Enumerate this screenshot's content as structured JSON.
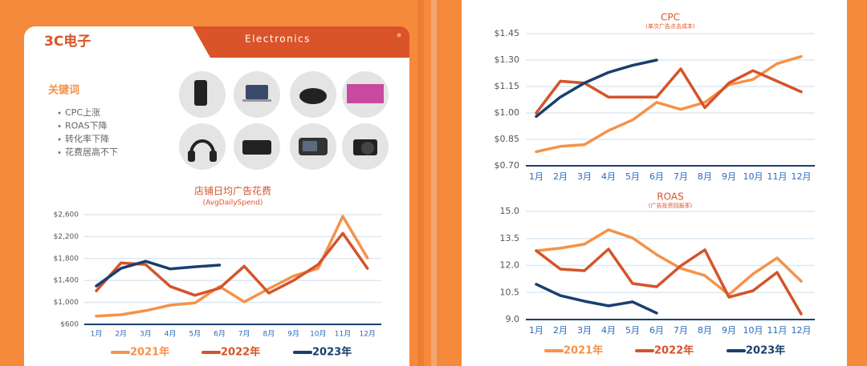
{
  "header": {
    "title": "3C电子",
    "tab": "Electronics"
  },
  "keywords": {
    "title": "关键词",
    "items": [
      "CPC上涨",
      "ROAS下降",
      "转化率下降",
      "花费居高不下"
    ]
  },
  "chart_data": [
    {
      "type": "line",
      "title": "店铺日均广告花费",
      "subtitle": "(AvgDailySpend)",
      "categories": [
        "1月",
        "2月",
        "3月",
        "4月",
        "5月",
        "6月",
        "7月",
        "8月",
        "9月",
        "10月",
        "11月",
        "12月"
      ],
      "ylim": [
        600,
        2600
      ],
      "yticks": [
        {
          "value": 600,
          "label": "$600"
        },
        {
          "value": 1000,
          "label": "$1,000"
        },
        {
          "value": 1400,
          "label": "$1,400"
        },
        {
          "value": 1800,
          "label": "$1,800"
        },
        {
          "value": 2200,
          "label": "$2,200"
        },
        {
          "value": 2600,
          "label": "$2,600"
        }
      ],
      "grid": true,
      "series": [
        {
          "name": "2021年",
          "color": "#f5924a",
          "values": [
            750,
            775,
            850,
            950,
            990,
            1290,
            1010,
            1250,
            1480,
            1620,
            2570,
            1810
          ]
        },
        {
          "name": "2022年",
          "color": "#d4542a",
          "values": [
            1210,
            1720,
            1690,
            1290,
            1130,
            1260,
            1660,
            1170,
            1400,
            1690,
            2260,
            1620
          ]
        },
        {
          "name": "2023年",
          "color": "#1a3f6e",
          "values": [
            1300,
            1620,
            1750,
            1610,
            1650,
            1680,
            null,
            null,
            null,
            null,
            null,
            null
          ]
        }
      ]
    },
    {
      "type": "line",
      "title": "CPC",
      "subtitle": "(单次广告点击成本)",
      "categories": [
        "1月",
        "2月",
        "3月",
        "4月",
        "5月",
        "6月",
        "7月",
        "8月",
        "9月",
        "10月",
        "11月",
        "12月"
      ],
      "ylim": [
        0.7,
        1.45
      ],
      "yticks": [
        {
          "value": 0.7,
          "label": "$0.70"
        },
        {
          "value": 0.85,
          "label": "$0.85"
        },
        {
          "value": 1.0,
          "label": "$1.00"
        },
        {
          "value": 1.15,
          "label": "$1.15"
        },
        {
          "value": 1.3,
          "label": "$1.30"
        },
        {
          "value": 1.45,
          "label": "$1.45"
        }
      ],
      "grid": true,
      "series": [
        {
          "color": "#f5924a",
          "values": [
            0.78,
            0.81,
            0.82,
            0.9,
            0.96,
            1.06,
            1.02,
            1.06,
            1.16,
            1.19,
            1.28,
            1.32
          ]
        },
        {
          "color": "#d4542a",
          "values": [
            1.0,
            1.18,
            1.17,
            1.09,
            1.09,
            1.09,
            1.25,
            1.03,
            1.17,
            1.24,
            1.18,
            1.12
          ]
        },
        {
          "color": "#1a3f6e",
          "values": [
            0.98,
            1.09,
            1.17,
            1.23,
            1.27,
            1.3,
            null,
            null,
            null,
            null,
            null,
            null
          ]
        }
      ]
    },
    {
      "type": "line",
      "title": "ROAS",
      "subtitle": "(广告投资回报率)",
      "categories": [
        "1月",
        "2月",
        "3月",
        "4月",
        "5月",
        "6月",
        "7月",
        "8月",
        "9月",
        "10月",
        "11月",
        "12月"
      ],
      "ylim": [
        9,
        15
      ],
      "yticks": [
        {
          "value": 9,
          "label": "9.0"
        },
        10.5,
        {
          "value": 12,
          "label": "12.0"
        },
        13.5,
        {
          "value": 15,
          "label": "15.0"
        }
      ],
      "grid": true,
      "series": [
        {
          "name": "2021年",
          "color": "#f5924a",
          "values": [
            12.82,
            12.96,
            13.18,
            13.98,
            13.53,
            12.6,
            11.84,
            11.44,
            10.38,
            11.53,
            12.42,
            11.13
          ]
        },
        {
          "name": "2022年",
          "color": "#d4542a",
          "values": [
            12.82,
            11.8,
            11.71,
            12.91,
            11.0,
            10.82,
            11.98,
            12.87,
            10.24,
            10.6,
            11.62,
            9.31
          ]
        },
        {
          "name": "2023年",
          "color": "#1a3f6e",
          "values": [
            10.96,
            10.33,
            10.02,
            9.76,
            9.98,
            9.36,
            null,
            null,
            null,
            null,
            null,
            null
          ]
        }
      ]
    }
  ]
}
